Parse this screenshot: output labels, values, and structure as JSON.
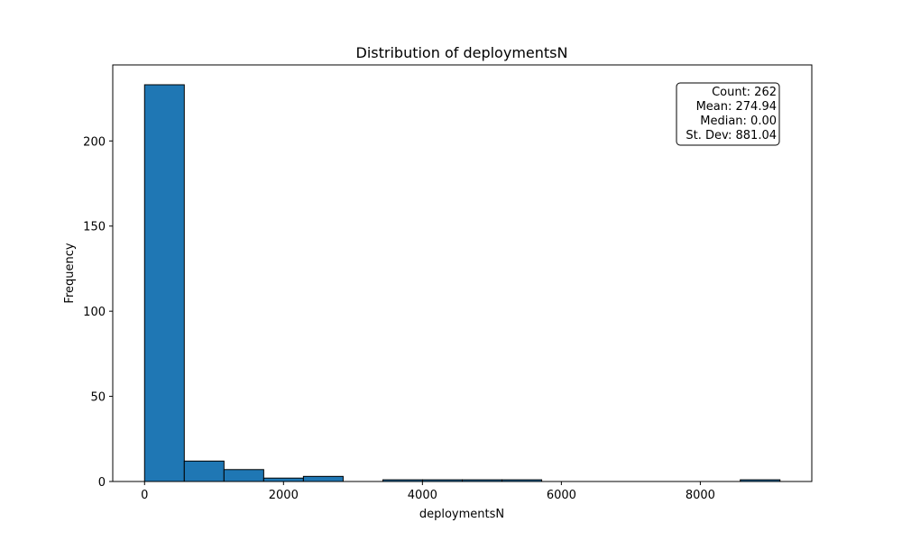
{
  "chart_data": {
    "type": "bar",
    "title": "Distribution of deploymentsN",
    "xlabel": "deploymentsN",
    "ylabel": "Frequency",
    "bin_edges": [
      0,
      571.7,
      1143.4,
      1715.1,
      2286.8,
      2858.5,
      3430.2,
      4001.9,
      4573.6,
      5145.3,
      5716.9,
      6288.6,
      6860.3,
      7432.0,
      8003.7,
      8575.4,
      9147.1
    ],
    "values": [
      233,
      12,
      7,
      2,
      3,
      0,
      1,
      1,
      1,
      1,
      0,
      0,
      0,
      0,
      0,
      1
    ],
    "xlim": [
      -458,
      9605
    ],
    "ylim": [
      0,
      244.65
    ],
    "x_ticks": [
      0,
      2000,
      4000,
      6000,
      8000
    ],
    "x_tick_labels": [
      "0",
      "2000",
      "4000",
      "6000",
      "8000"
    ],
    "y_ticks": [
      0,
      50,
      100,
      150,
      200
    ],
    "y_tick_labels": [
      "0",
      "50",
      "100",
      "150",
      "200"
    ],
    "bar_color": "#1f77b4",
    "edge_color": "#000000",
    "grid": false,
    "legend": "none",
    "stats_box": {
      "position": "top-right",
      "lines": [
        "Count: 262",
        "Mean: 274.94",
        "Median: 0.00",
        "St. Dev: 881.04"
      ]
    }
  }
}
